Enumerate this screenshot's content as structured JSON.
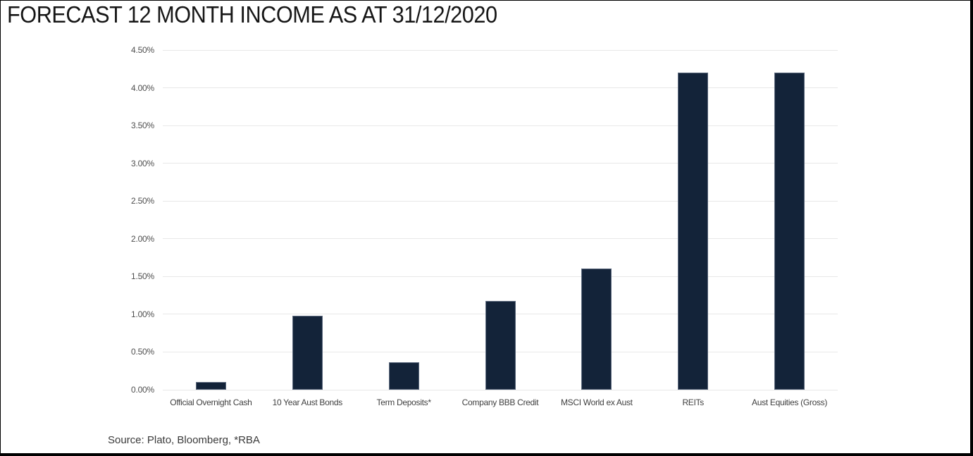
{
  "title": "FORECAST 12 MONTH INCOME AS AT 31/12/2020",
  "source": "Source: Plato, Bloomberg, *RBA",
  "colors": {
    "bar_fill": "#132339",
    "bar_edge": "rgba(158,170,188,0.55)",
    "gridline": "#e8e8e8",
    "title_text": "#161616",
    "axis_text": "#4f4f4f",
    "frame_border": "#000000"
  },
  "chart_data": {
    "type": "bar",
    "title": "FORECAST 12 MONTH INCOME AS AT 31/12/2020",
    "categories": [
      "Official Overnight Cash",
      "10 Year Aust Bonds",
      "Term Deposits*",
      "Company BBB Credit",
      "MSCI World ex Aust",
      "REITs",
      "Aust Equities (Gross)"
    ],
    "values": [
      0.1,
      0.98,
      0.36,
      1.18,
      1.61,
      4.2,
      4.2
    ],
    "unit": "%",
    "xlabel": "",
    "ylabel": "",
    "ylim": [
      0,
      4.5
    ],
    "ytick_step": 0.5,
    "ytick_labels": [
      "0.00%",
      "0.50%",
      "1.00%",
      "1.50%",
      "2.00%",
      "2.50%",
      "3.00%",
      "3.50%",
      "4.00%",
      "4.50%"
    ],
    "grid": true,
    "legend": false,
    "annotation": "Source: Plato, Bloomberg, *RBA"
  }
}
